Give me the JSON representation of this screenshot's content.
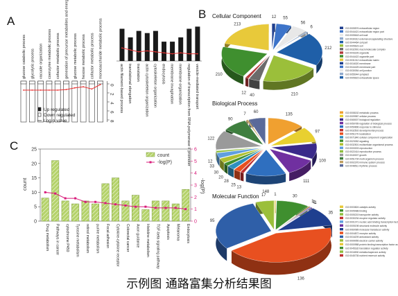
{
  "caption": "示例图  通路富集分析结果图",
  "panel_labels": {
    "a": "A",
    "b": "B",
    "c": "C"
  },
  "chart_data": [
    {
      "id": "A-left",
      "type": "bar",
      "orientation": "downward",
      "categories": [
        "glucose catabolic process",
        "glycolytic process",
        "vacuole organization",
        "coenzyme metabolic process",
        "cofactor metabolic process",
        "generation of precursor metabolites and energy",
        "glucose metabolic process",
        "hexose metabolic process",
        "cofactor metabolic process",
        "monosaccharide metabolic process"
      ],
      "series": [
        {
          "name": "Up regulated",
          "values": [
            1,
            1,
            1,
            1,
            1,
            1,
            1,
            1,
            1,
            1
          ],
          "color": "#ffffff"
        },
        {
          "name": "Down regulated",
          "values": [
            4,
            4,
            4,
            4,
            4,
            4,
            4,
            4,
            4,
            4
          ],
          "color": "#ffffff"
        },
        {
          "name": "Log p value",
          "values": [
            1.0,
            1.0,
            1.0,
            1.0,
            1.0,
            1.1,
            1.4,
            1.6,
            1.2,
            2.0
          ],
          "color": "#e83030"
        }
      ],
      "ticks": [
        "0",
        "2",
        "4",
        "6",
        "8"
      ],
      "legend": [
        "Up regulated",
        "Down regulated",
        "Log p value"
      ],
      "legend_position": "right"
    },
    {
      "id": "A-right",
      "type": "bar",
      "categories": [
        "actin filament-based process",
        "translational elongation",
        "translation",
        "actin cytoskeleton organization",
        "cytoskeleton organization",
        "endocytosis",
        "membrane invagination",
        "membrane organization",
        "regulation of transcription from RNA polymerase II promoter",
        "vesicle-mediated transport"
      ],
      "series": [
        {
          "name": "count",
          "values": [
            7.5,
            5.5,
            7.0,
            6.5,
            7.0,
            4.5,
            4.5,
            5.5,
            7.5,
            8.0
          ],
          "color": "#1a1a1a"
        },
        {
          "name": "p",
          "values": [
            2.2,
            2.0,
            1.8,
            1.9,
            1.8,
            1.7,
            1.6,
            1.7,
            1.6,
            1.6
          ],
          "color": "#e83030"
        }
      ]
    },
    {
      "id": "B-cellular-component",
      "type": "pie",
      "title": "Cellular Component",
      "values": [
        12,
        55,
        56,
        6,
        212,
        210,
        40,
        12,
        210,
        213
      ],
      "labels": [
        "12",
        "55",
        "56",
        "6",
        "212",
        "210",
        "40",
        "12",
        "210",
        "213"
      ],
      "colors": [
        "#1f3f8f",
        "#3d74c9",
        "#e8e8e8",
        "#8fa9cc",
        "#1f5fa8",
        "#9bbf3a",
        "#6b6b6b",
        "#b33a3a",
        "#3f8f2f",
        "#e8c93a"
      ],
      "legend": [
        "GO:0005576 extracellular region",
        "GO:0044421 extracellular region part",
        "GO:0005618 cell wall",
        "GO:0030312 external encapsulating structure",
        "GO:0044464 cell part",
        "GO:0005623 cell",
        "GO:0032991 macromolecular complex",
        "GO:0043226 organelle",
        "GO:0044422 organelle part",
        "GO:0031012 extracellular matrix",
        "GO:0016020 membrane",
        "GO:0044425 membrane part",
        "GO:0030054 cell junction",
        "GO:0055044 symplast",
        "GO:0005615 extracellular space"
      ],
      "legend_position": "right"
    },
    {
      "id": "B-biological-process",
      "type": "pie",
      "title": "Biological Process",
      "values": [
        135,
        97,
        100,
        111,
        148,
        13,
        25,
        28,
        20,
        30,
        33,
        12,
        122,
        90,
        7,
        60
      ],
      "labels": [
        "135",
        "97",
        "100",
        "111",
        "148",
        "13",
        "25",
        "28",
        "20",
        "30",
        "33",
        "12",
        "122",
        "90",
        "7",
        "60"
      ],
      "colors": [
        "#f0a030",
        "#e8d030",
        "#3a2a8a",
        "#7030a0",
        "#2f6fbf",
        "#c03030",
        "#e85020",
        "#2f8fbf",
        "#3f8f2f",
        "#b0c030",
        "#5f9fdf",
        "#8fbf3f",
        "#9a9a9a",
        "#3f7f3f",
        "#c0a060",
        "#5a6a9a"
      ],
      "legend": [
        "GO:0008152 metabolic process",
        "GO:0009987 cellular process",
        "GO:0065007 biological regulation",
        "GO:0050789 regulation of biological process",
        "GO:0050896 response to stimulus",
        "GO:0032502 developmental process",
        "GO:0051179 localization",
        "GO:0071840 cellular component organization",
        "GO:0023052 signaling",
        "GO:0032501 multicellular organismal process",
        "GO:0000003 reproduction",
        "GO:0022414 reproductive process",
        "GO:0040007 growth",
        "GO:0051704 multi-organism process",
        "GO:0002376 immune system process",
        "GO:0048511 rhythmic process"
      ],
      "legend_position": "right"
    },
    {
      "id": "B-molecular-function",
      "type": "pie",
      "title": "Molecular Function",
      "values": [
        1,
        30,
        1,
        1,
        1,
        1,
        35,
        136,
        95,
        17
      ],
      "labels": [
        "1",
        "30",
        "1",
        "1",
        "1",
        "1",
        "35",
        "136",
        "95",
        "17"
      ],
      "colors": [
        "#e8c93a",
        "#3f8f2f",
        "#8fbf3f",
        "#c03030",
        "#5f9fdf",
        "#7030a0",
        "#1f3f8f",
        "#e85020",
        "#2f5fa8",
        "#9bbf3a"
      ],
      "legend": [
        "GO:0003824 catalytic activity",
        "GO:0005488 binding",
        "GO:0005215 transporter activity",
        "GO:0030234 enzyme regulator activity",
        "GO:0001071 nucleic acid binding transcription factor activity",
        "GO:0005198 structural molecule activity",
        "GO:0060089 molecular transducer activity",
        "GO:0004872 receptor activity",
        "GO:0016209 antioxidant activity",
        "GO:0009055 electron carrier activity",
        "GO:0000988 protein binding transcription factor activity",
        "GO:0045182 translation regulator activity",
        "GO:0016530 metallochaperone activity",
        "GO:0045735 nutrient reservoir activity"
      ],
      "legend_position": "right"
    },
    {
      "id": "C",
      "type": "bar",
      "categories": [
        "Drug metabolism",
        "Pathways in cancer",
        "cytochrome P450",
        "Tyrosine metabolism",
        "retinol metabolism",
        "purine metabolism",
        "Focal adhesion",
        "Cytokine-cytokine receptor",
        "Colorectal cancer",
        "Axon guidance",
        "Histidine metabolism",
        "TGF-beta signaling pathway",
        "Apoptosis",
        "Melanoma",
        "Endocytosis"
      ],
      "series": [
        {
          "name": "count",
          "values": [
            8,
            21,
            7,
            6,
            7,
            6,
            13,
            15,
            7,
            9,
            4,
            7,
            7,
            6,
            11
          ],
          "color": "#b5d36b"
        },
        {
          "name": "-log(P)",
          "values": [
            2.4,
            2.3,
            1.9,
            1.9,
            1.6,
            1.6,
            1.5,
            1.4,
            1.3,
            1.2,
            1.2,
            1.1,
            1.1,
            1.1,
            1.0
          ],
          "color": "#d81b7a"
        }
      ],
      "ylabel": "count",
      "y2label": "-log(P)",
      "ylim": [
        0,
        25
      ],
      "y2lim": [
        0,
        6
      ],
      "yticks": [
        0,
        5,
        10,
        15,
        20,
        25
      ],
      "y2ticks": [
        0,
        1,
        2,
        3,
        4,
        5,
        6
      ],
      "legend": [
        "count",
        "-log(P)"
      ],
      "legend_position": "top-right"
    }
  ]
}
